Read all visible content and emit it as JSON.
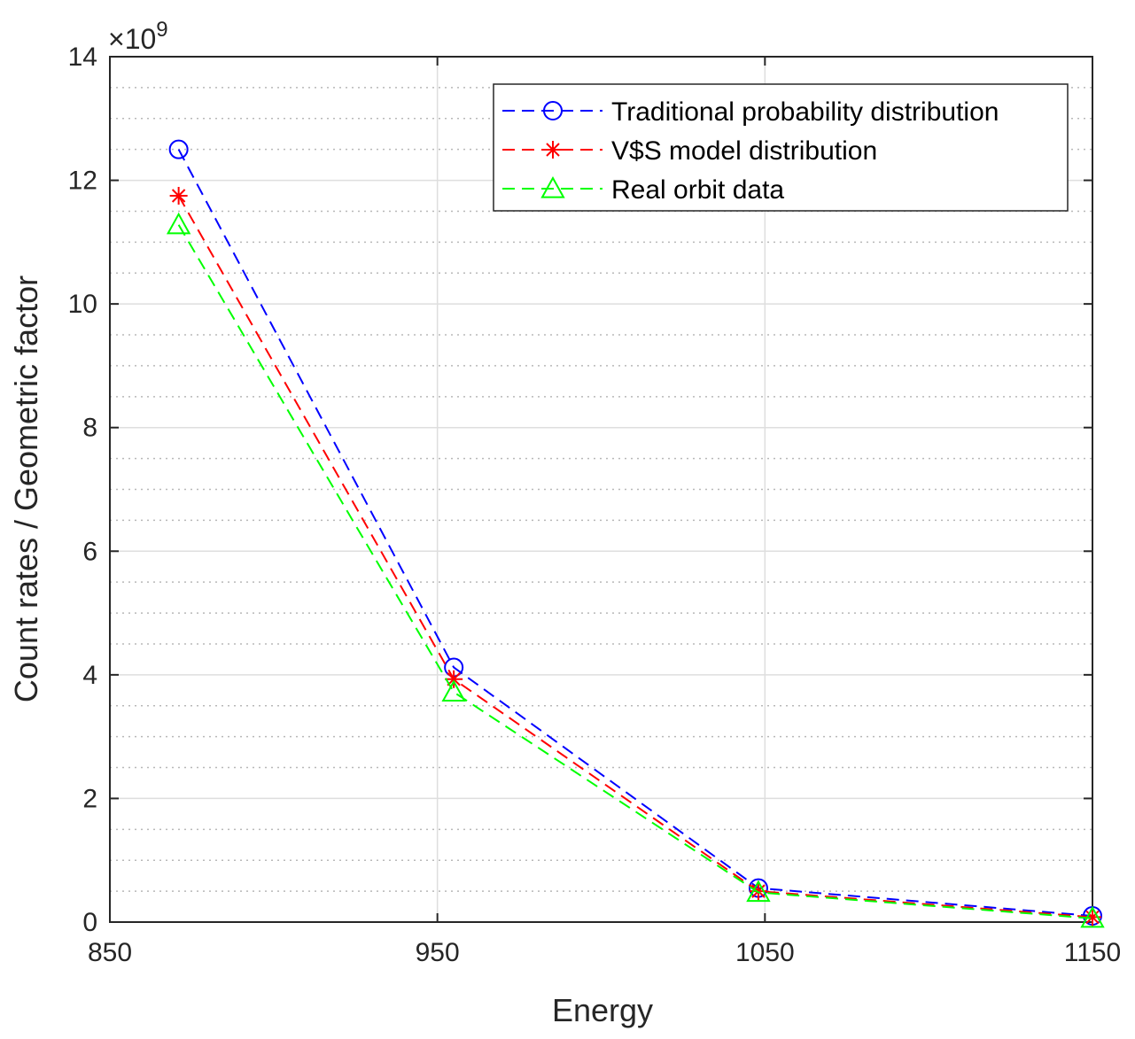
{
  "chart_data": {
    "type": "line",
    "title": "",
    "xlabel": "Energy",
    "ylabel": "Count rates / Geometric factor",
    "xlim": [
      850,
      1150
    ],
    "ylim": [
      0,
      14
    ],
    "y_scale_exponent": {
      "base": "×10",
      "power": "9"
    },
    "x_ticks": [
      850,
      950,
      1050,
      1150
    ],
    "x_tick_labels": [
      "850",
      "950",
      "1050",
      "1150"
    ],
    "y_ticks": [
      0,
      2,
      4,
      6,
      8,
      10,
      12,
      14
    ],
    "y_tick_labels": [
      "0",
      "2",
      "4",
      "6",
      "8",
      "10",
      "12",
      "14"
    ],
    "grid": true,
    "minor_grid": true,
    "legend_position": "top-right",
    "x": [
      871,
      955,
      1048,
      1150
    ],
    "series": [
      {
        "name": "Traditional probability distribution",
        "color": "#0000ff",
        "marker": "circle",
        "values": [
          12.5,
          4.12,
          0.55,
          0.1
        ]
      },
      {
        "name": "V$S model distribution",
        "color": "#ff0000",
        "marker": "asterisk",
        "values": [
          11.75,
          3.93,
          0.5,
          0.08
        ]
      },
      {
        "name": "Real orbit data",
        "color": "#00ff00",
        "marker": "triangle",
        "values": [
          11.28,
          3.72,
          0.48,
          0.06
        ]
      }
    ]
  }
}
